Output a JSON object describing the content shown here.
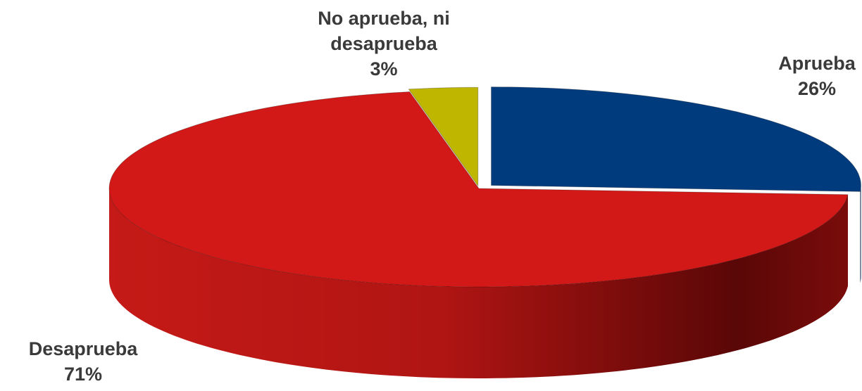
{
  "chart_data": {
    "type": "pie",
    "categories": [
      "Aprueba",
      "Desaprueba",
      "No aprueba, ni desaprueba"
    ],
    "values": [
      26,
      71,
      3
    ],
    "value_labels": [
      "26%",
      "71%",
      "3%"
    ],
    "colors": [
      "#003b7e",
      "#d31917",
      "#bfb600"
    ]
  }
}
